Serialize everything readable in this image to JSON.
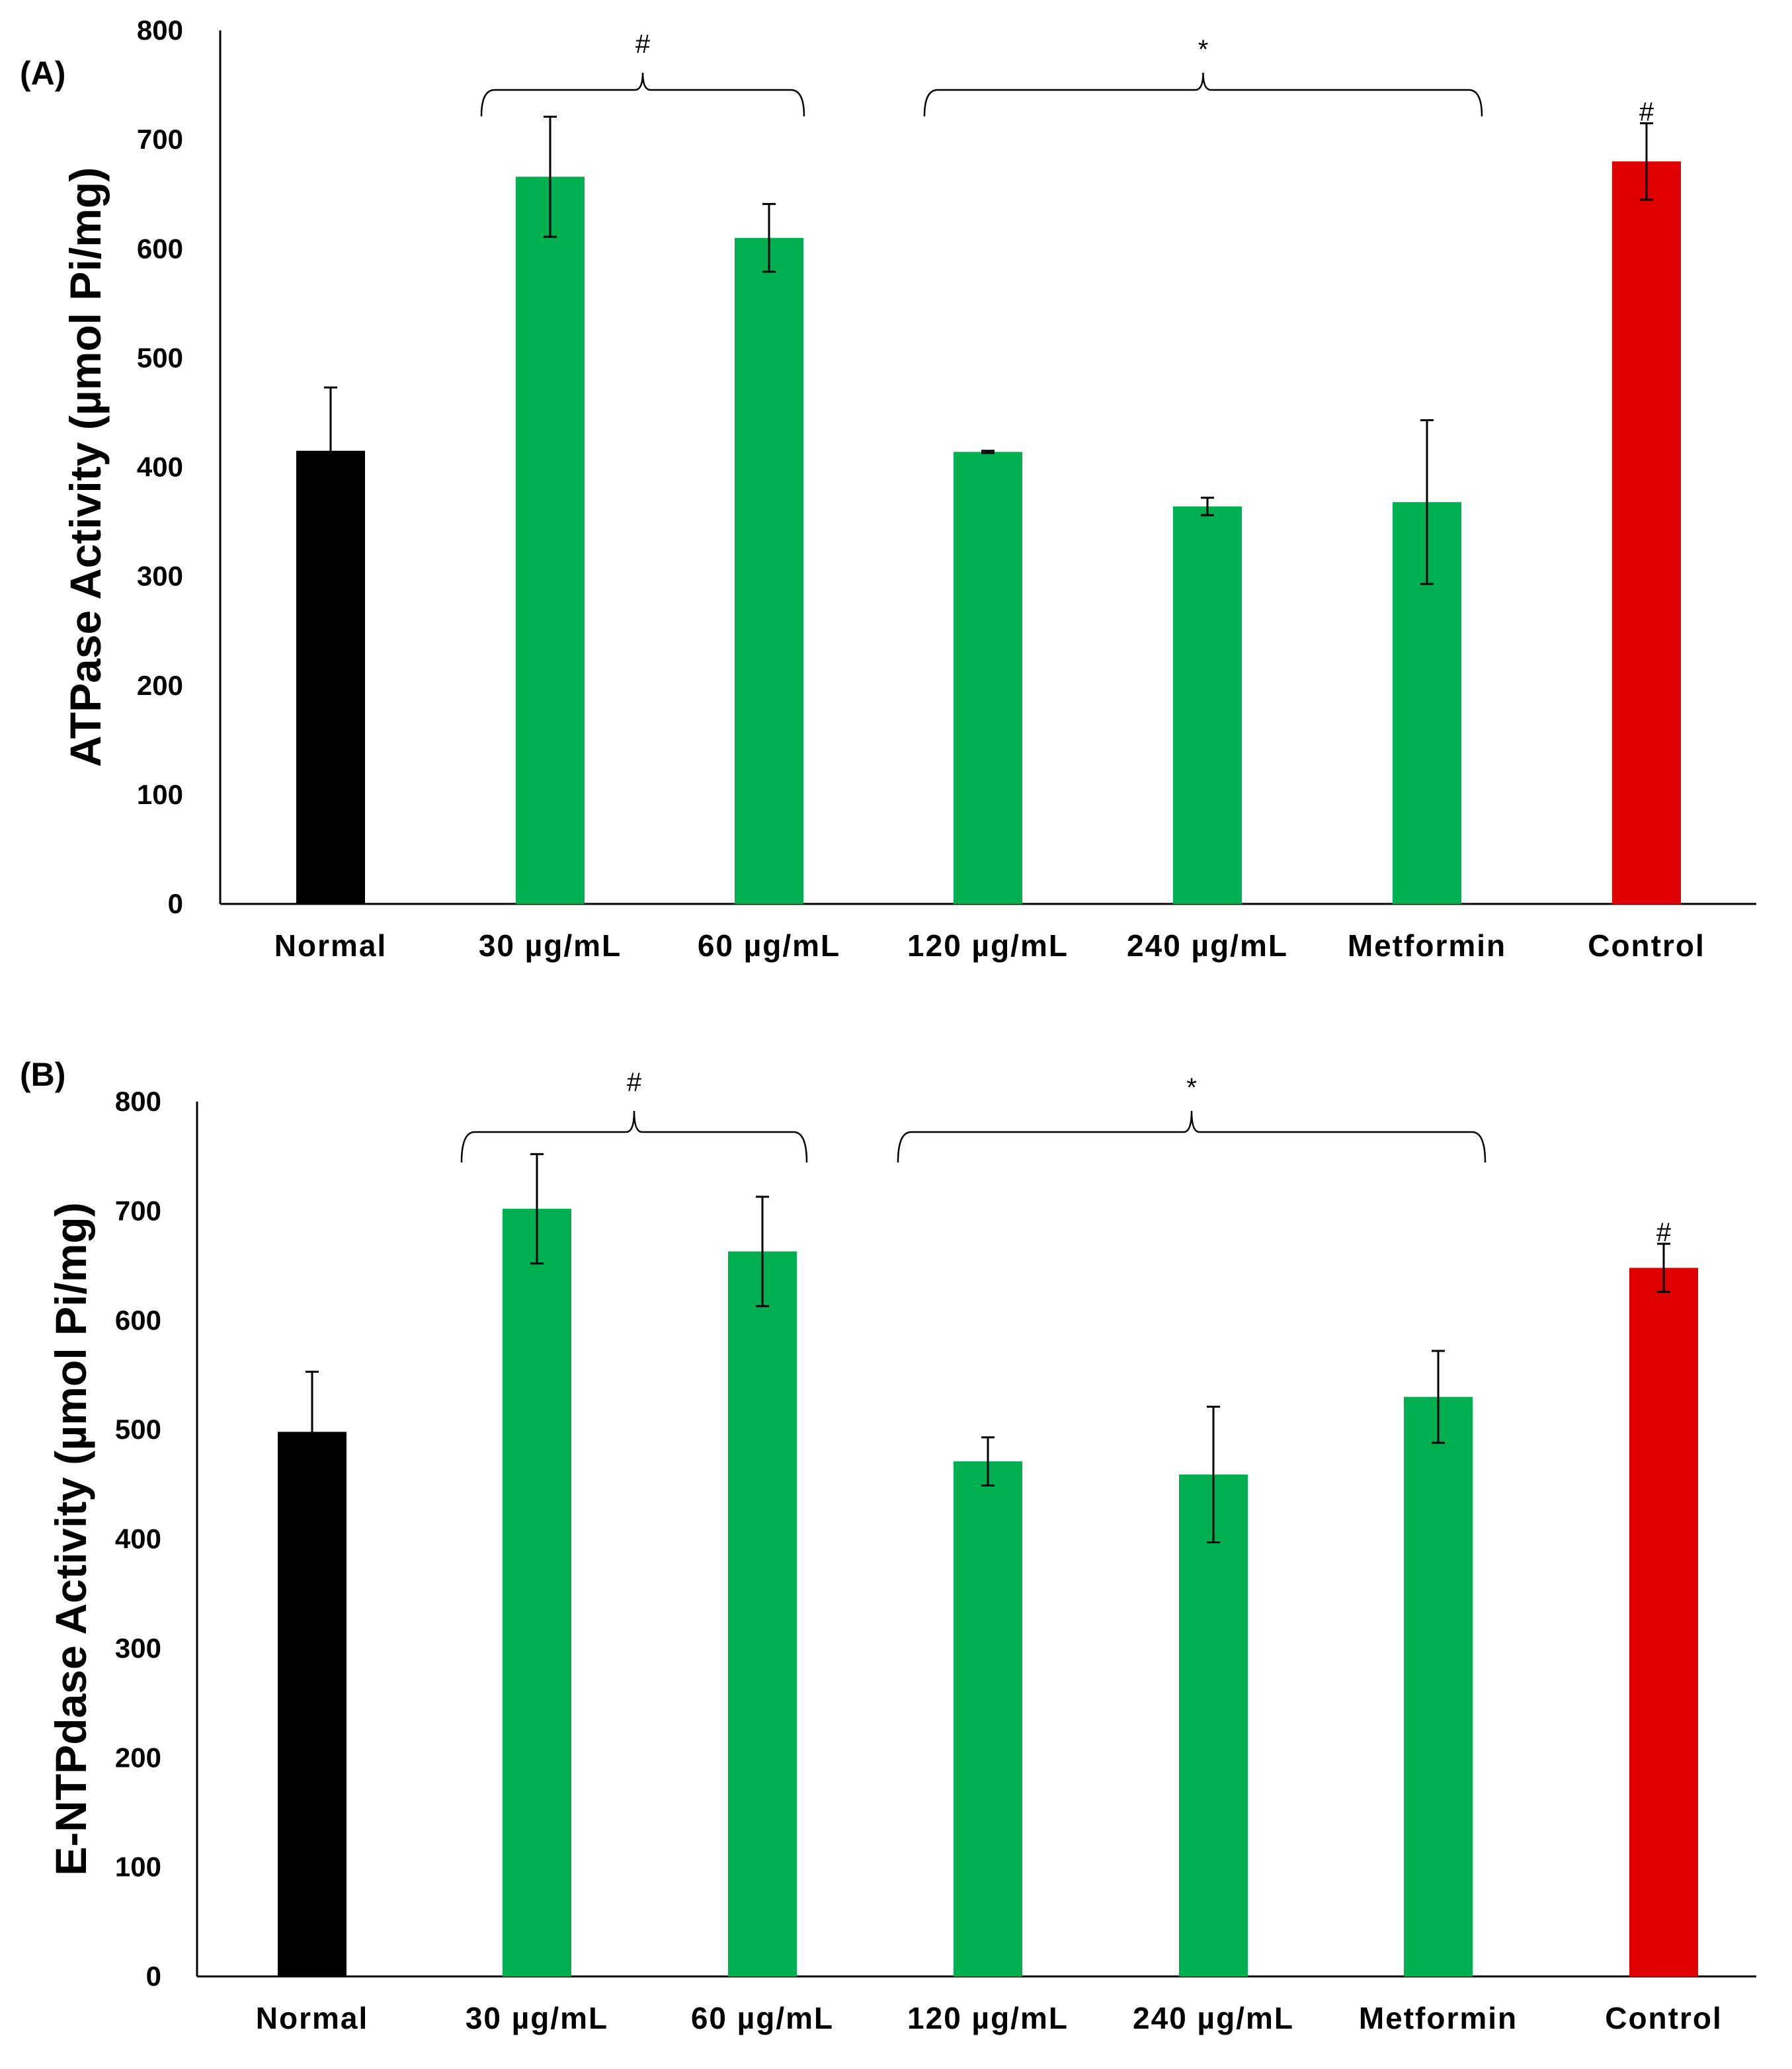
{
  "chart_data": [
    {
      "type": "bar",
      "panel_label": "(A)",
      "title": "",
      "xlabel": "",
      "ylabel": "ATPase Activity (µmol Pi/mg)",
      "ylim": [
        0,
        800
      ],
      "yticks": [
        0,
        100,
        200,
        300,
        400,
        500,
        600,
        700,
        800
      ],
      "grid": false,
      "categories": [
        "Normal",
        "30 µg/mL",
        "60 µg/mL",
        "120 µg/mL",
        "240 µg/mL",
        "Metformin",
        "Control"
      ],
      "values": [
        415,
        666,
        610,
        414,
        364,
        368,
        680
      ],
      "errors": [
        58,
        55,
        31,
        1,
        8,
        75,
        35
      ],
      "colors": [
        "#000000",
        "#00b050",
        "#00b050",
        "#00b050",
        "#00b050",
        "#00b050",
        "#e00000"
      ],
      "annotations": [
        {
          "type": "bracket",
          "label": "#",
          "from": 1,
          "to": 2
        },
        {
          "type": "bracket",
          "label": "*",
          "from": 3,
          "to": 5
        },
        {
          "type": "marker",
          "label": "#",
          "index": 6
        }
      ]
    },
    {
      "type": "bar",
      "panel_label": "(B)",
      "title": "",
      "xlabel": "",
      "ylabel": "E-NTPdase Activity (µmol Pi/mg)",
      "ylim": [
        0,
        800
      ],
      "yticks": [
        0,
        100,
        200,
        300,
        400,
        500,
        600,
        700,
        800
      ],
      "grid": false,
      "categories": [
        "Normal",
        "30 µg/mL",
        "60 µg/mL",
        "120 µg/mL",
        "240 µg/mL",
        "Metformin",
        "Control"
      ],
      "values": [
        498,
        702,
        663,
        471,
        459,
        530,
        648
      ],
      "errors": [
        55,
        50,
        50,
        22,
        62,
        42,
        22
      ],
      "colors": [
        "#000000",
        "#00b050",
        "#00b050",
        "#00b050",
        "#00b050",
        "#00b050",
        "#e00000"
      ],
      "annotations": [
        {
          "type": "bracket",
          "label": "#",
          "from": 1,
          "to": 2
        },
        {
          "type": "bracket",
          "label": "*",
          "from": 3,
          "to": 5
        },
        {
          "type": "marker",
          "label": "#",
          "index": 6
        }
      ]
    }
  ]
}
